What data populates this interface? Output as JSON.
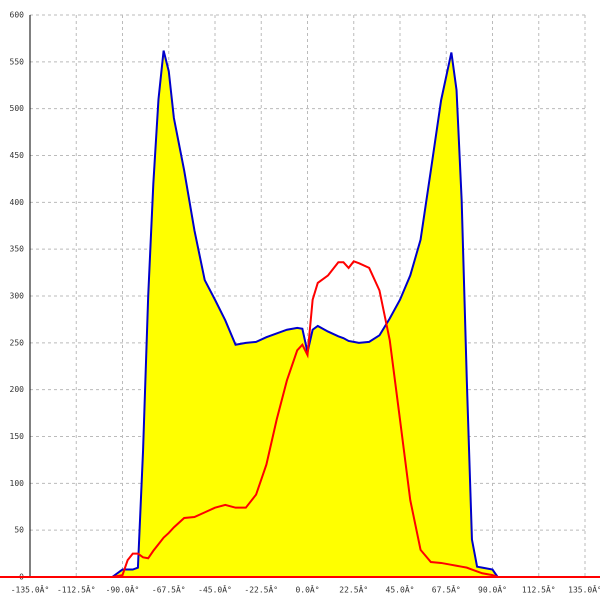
{
  "chart_data": {
    "type": "line",
    "x": [
      -95,
      -90,
      -87.5,
      -85,
      -82.5,
      -80,
      -77.5,
      -75,
      -72.5,
      -70,
      -67.5,
      -65,
      -60,
      -55,
      -50,
      -45,
      -40,
      -35,
      -30,
      -25,
      -20,
      -15,
      -10,
      -5,
      -2.5,
      0,
      2.5,
      5,
      10,
      15,
      17.5,
      20,
      22.5,
      25,
      30,
      35,
      40,
      45,
      50,
      55,
      60,
      65,
      70,
      72.5,
      75,
      77.5,
      80,
      82.5,
      85,
      90,
      92.5
    ],
    "series": [
      {
        "color": "#0000cc",
        "fill": "#ffff00",
        "values": [
          0,
          8,
          8,
          8,
          10,
          135,
          300,
          420,
          510,
          562,
          540,
          490,
          434,
          370,
          317,
          296,
          274,
          248,
          250,
          251,
          256,
          260,
          264,
          266,
          265,
          240,
          264,
          268,
          262,
          257,
          255,
          252,
          251,
          250,
          251,
          258,
          276,
          296,
          322,
          360,
          434,
          509,
          560,
          520,
          402,
          210,
          40,
          11,
          10,
          8,
          0
        ]
      },
      {
        "color": "#ff0000",
        "values": [
          0,
          2,
          18,
          25,
          25,
          21,
          20,
          28,
          35,
          42,
          47,
          53,
          63,
          64,
          69,
          74,
          77,
          74,
          74,
          88,
          120,
          168,
          210,
          242,
          248,
          237,
          296,
          314,
          322,
          336,
          336,
          330,
          337,
          335,
          330,
          306,
          253,
          168,
          82,
          29,
          16,
          15,
          13,
          12,
          11,
          10,
          8,
          6,
          4,
          2,
          0
        ]
      }
    ],
    "xlim": [
      -135,
      135
    ],
    "xticks": [
      {
        "value": -135,
        "label": "-135.0Â°"
      },
      {
        "value": -112.5,
        "label": "-112.5Â°"
      },
      {
        "value": -90,
        "label": "-90.0Â°"
      },
      {
        "value": -67.5,
        "label": "-67.5Â°"
      },
      {
        "value": -45,
        "label": "-45.0Â°"
      },
      {
        "value": -22.5,
        "label": "-22.5Â°"
      },
      {
        "value": 0,
        "label": "0.0Â°"
      },
      {
        "value": 22.5,
        "label": "22.5Â°"
      },
      {
        "value": 45,
        "label": "45.0Â°"
      },
      {
        "value": 67.5,
        "label": "67.5Â°"
      },
      {
        "value": 90,
        "label": "90.0Â°"
      },
      {
        "value": 112.5,
        "label": "112.5Â°"
      },
      {
        "value": 135,
        "label": "135.0Â°"
      }
    ],
    "ylim": [
      0,
      600
    ],
    "yticks": [
      0,
      50,
      100,
      150,
      200,
      250,
      300,
      350,
      400,
      450,
      500,
      550,
      600
    ],
    "grid": true
  }
}
